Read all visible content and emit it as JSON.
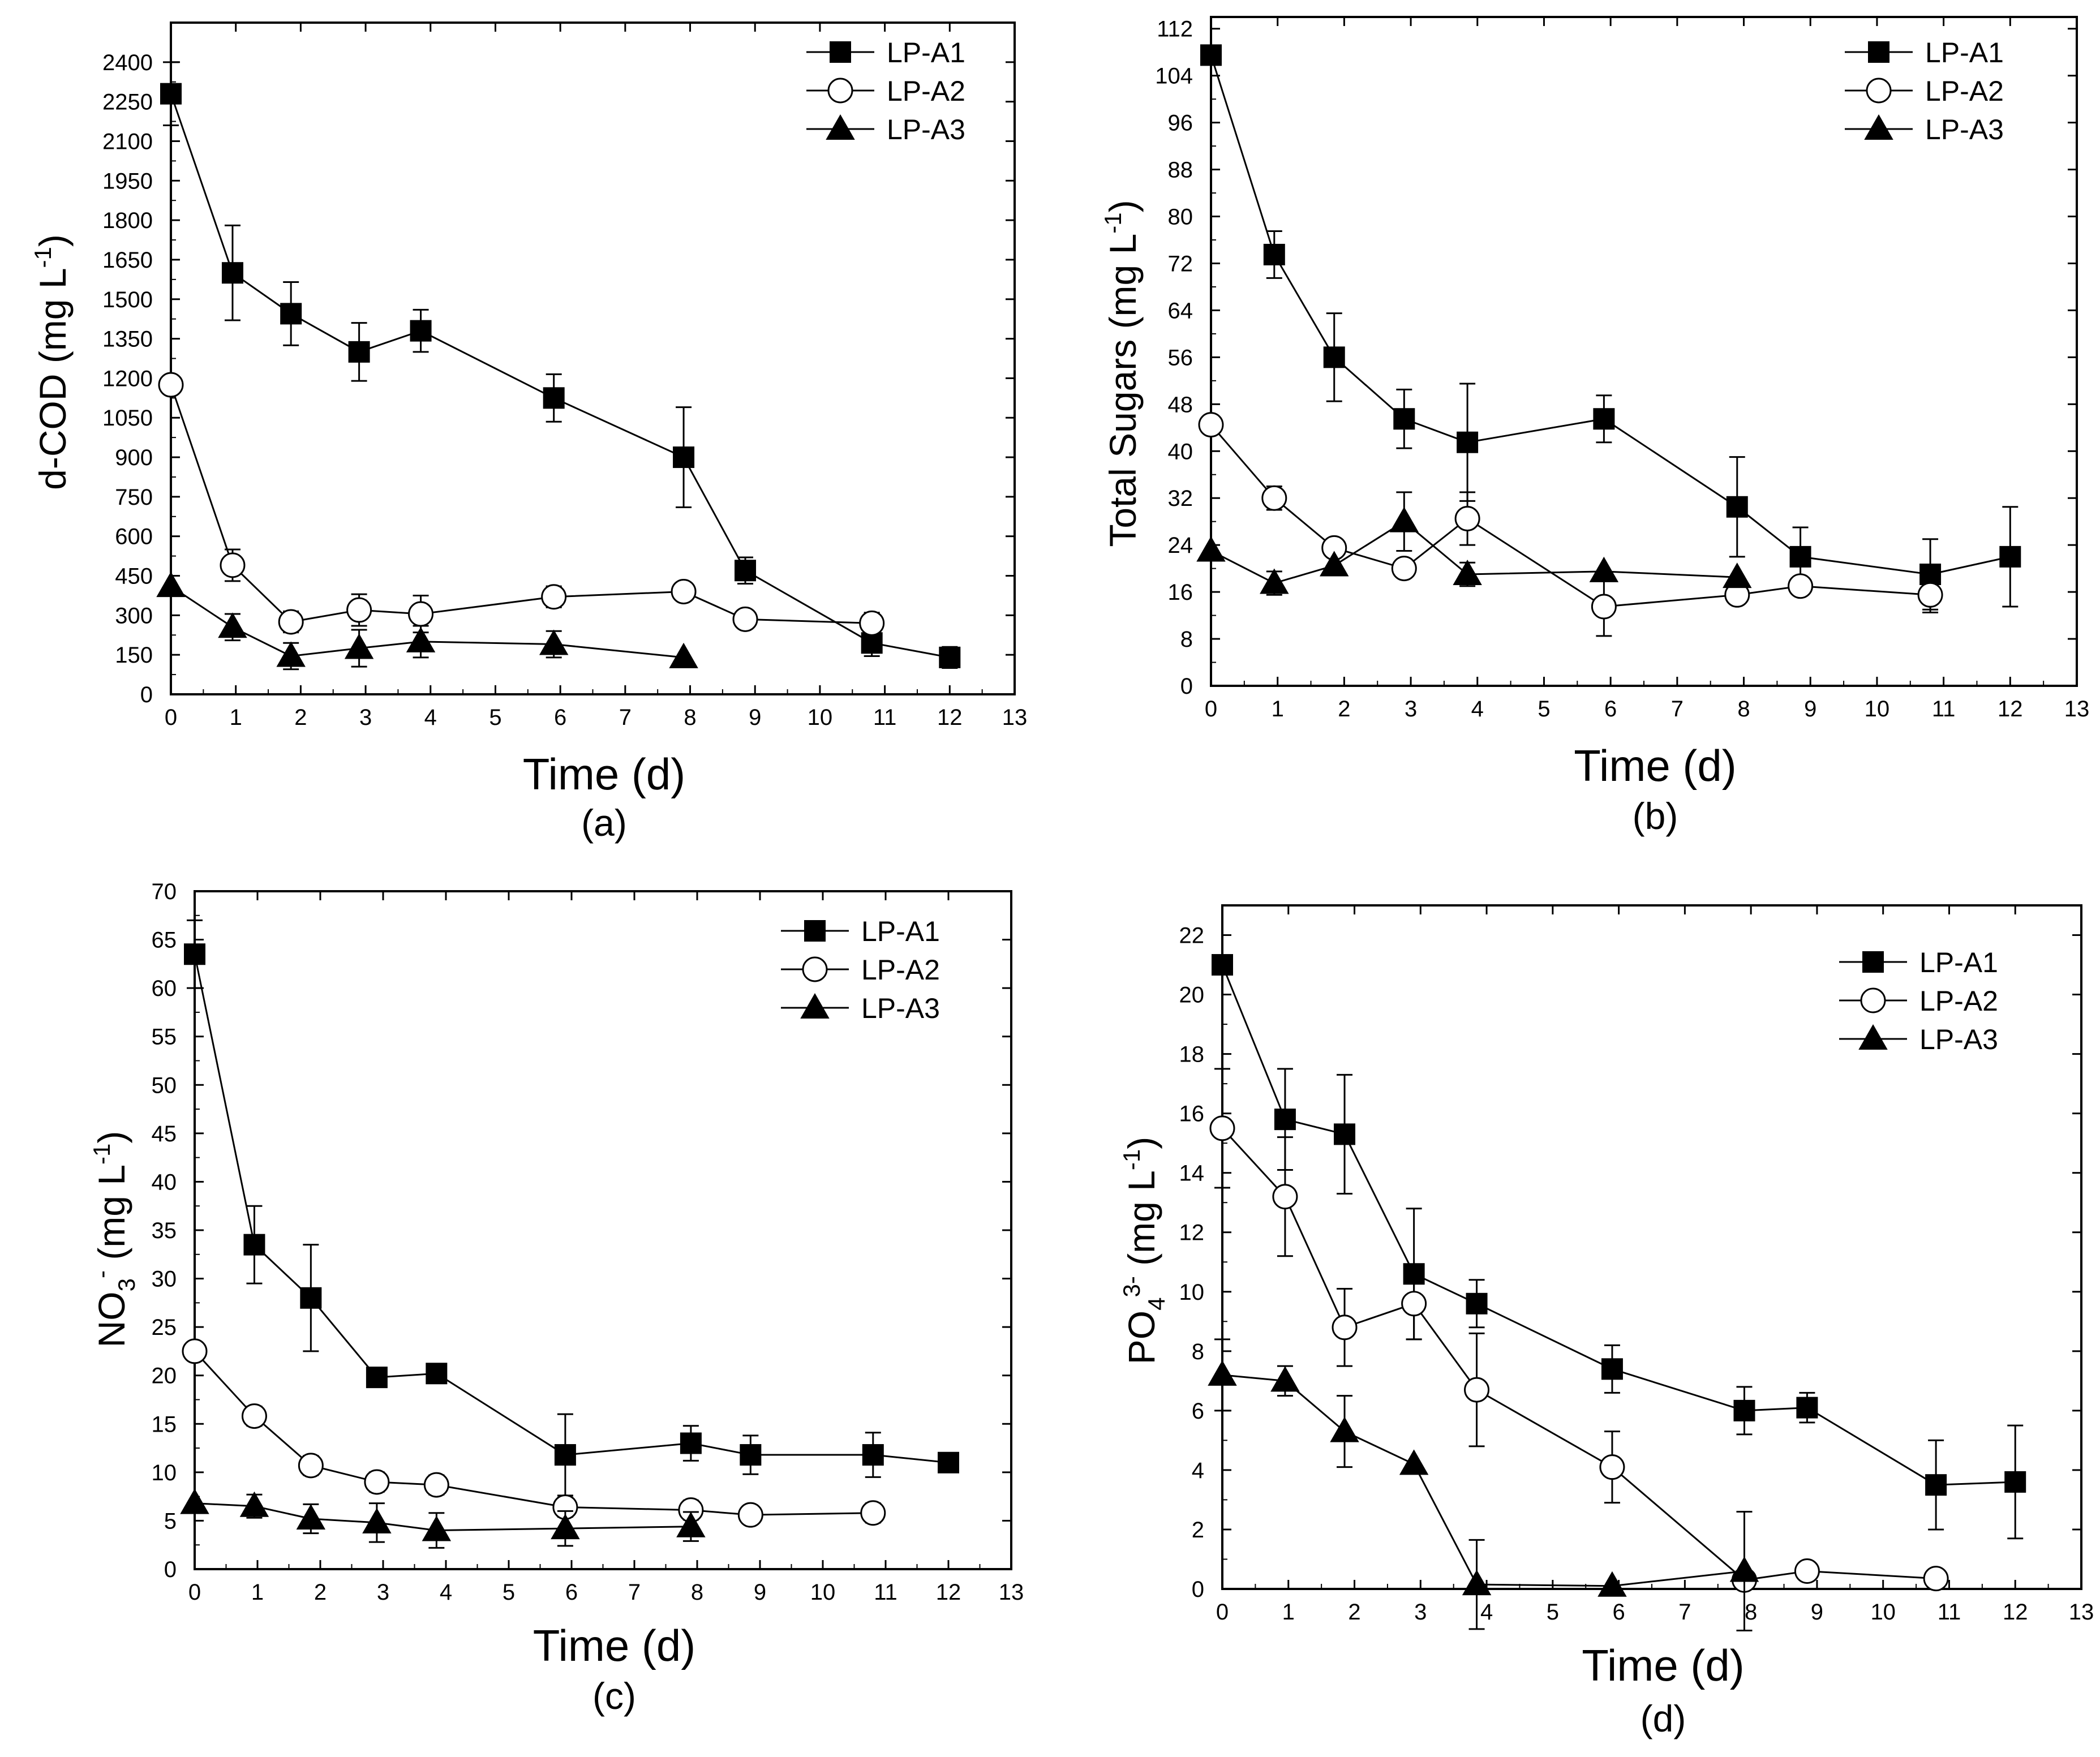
{
  "legend": [
    "LP-A1",
    "LP-A2",
    "LP-A3"
  ],
  "chart_data": [
    {
      "type": "line",
      "panel_label": "(a)",
      "xlabel": "Time (d)",
      "ylabel": "d-COD (mg L⁻¹)",
      "ylabel_parts": [
        "d-COD (mg L",
        "-1",
        ")"
      ],
      "xlim": [
        0,
        13
      ],
      "ylim": [
        0,
        2550
      ],
      "xticks": [
        0,
        1,
        2,
        3,
        4,
        5,
        6,
        7,
        8,
        9,
        10,
        11,
        12,
        13
      ],
      "yticks": [
        0,
        150,
        300,
        450,
        600,
        750,
        900,
        1050,
        1200,
        1350,
        1500,
        1650,
        1800,
        1950,
        2100,
        2250,
        2400
      ],
      "legend_position": "top-right",
      "series": [
        {
          "name": "LP-A1",
          "marker": "square",
          "x": [
            0,
            0.95,
            1.85,
            2.9,
            3.85,
            5.9,
            7.9,
            8.85,
            10.8,
            12
          ],
          "y": [
            2280,
            1600,
            1445,
            1300,
            1380,
            1125,
            900,
            470,
            195,
            140
          ],
          "err": [
            120,
            180,
            120,
            110,
            80,
            90,
            190,
            50,
            50,
            40
          ]
        },
        {
          "name": "LP-A2",
          "marker": "circle",
          "x": [
            0,
            0.95,
            1.85,
            2.9,
            3.85,
            5.9,
            7.9,
            8.85,
            10.8
          ],
          "y": [
            1175,
            490,
            275,
            320,
            305,
            370,
            390,
            285,
            270
          ],
          "err": [
            0,
            60,
            40,
            60,
            70,
            40,
            20,
            0,
            40
          ]
        },
        {
          "name": "LP-A3",
          "marker": "triangle",
          "x": [
            0,
            0.95,
            1.85,
            2.9,
            3.85,
            5.9,
            7.9
          ],
          "y": [
            410,
            255,
            145,
            175,
            200,
            190,
            140
          ],
          "err": [
            0,
            50,
            50,
            70,
            60,
            50,
            0
          ]
        }
      ]
    },
    {
      "type": "line",
      "panel_label": "(b)",
      "xlabel": "Time (d)",
      "ylabel": "Total Sugars  (mg L⁻¹)",
      "ylabel_parts": [
        "Total Sugars  (mg L",
        "-1",
        ")"
      ],
      "xlim": [
        0,
        13
      ],
      "ylim": [
        0,
        114
      ],
      "xticks": [
        0,
        1,
        2,
        3,
        4,
        5,
        6,
        7,
        8,
        9,
        10,
        11,
        12,
        13
      ],
      "yticks": [
        0,
        8,
        16,
        24,
        32,
        40,
        48,
        56,
        64,
        72,
        80,
        88,
        96,
        104,
        112
      ],
      "legend_position": "top-right",
      "series": [
        {
          "name": "LP-A1",
          "marker": "square",
          "x": [
            0,
            0.95,
            1.85,
            2.9,
            3.85,
            5.9,
            7.9,
            8.85,
            10.8,
            12
          ],
          "y": [
            107.5,
            73.5,
            56,
            45.5,
            41.5,
            45.5,
            30.5,
            22,
            19,
            22
          ],
          "err": [
            0,
            4,
            7.5,
            5,
            10,
            4,
            8.5,
            5,
            6,
            8.5
          ]
        },
        {
          "name": "LP-A2",
          "marker": "circle",
          "x": [
            0,
            0.95,
            1.85,
            2.9,
            3.85,
            5.9,
            7.9,
            8.85,
            10.8
          ],
          "y": [
            44.5,
            32,
            23.5,
            20,
            28.5,
            13.5,
            15.5,
            17,
            15.5
          ],
          "err": [
            0,
            2,
            0,
            0,
            4.5,
            5,
            0,
            1.5,
            3
          ]
        },
        {
          "name": "LP-A3",
          "marker": "triangle",
          "x": [
            0,
            0.95,
            1.85,
            2.9,
            3.85,
            5.9,
            7.9
          ],
          "y": [
            23,
            17.5,
            20.5,
            28,
            19,
            19.5,
            18.5
          ],
          "err": [
            0,
            2,
            0,
            5,
            2,
            0,
            0
          ]
        }
      ]
    },
    {
      "type": "line",
      "panel_label": "(c)",
      "xlabel": "Time (d)",
      "ylabel": "NO₃⁻  (mg L⁻¹)",
      "ylabel_parts": [
        "NO",
        "3",
        "-",
        "  (mg L",
        "-1",
        ")"
      ],
      "xlim": [
        0,
        13
      ],
      "ylim": [
        0,
        70
      ],
      "xticks": [
        0,
        1,
        2,
        3,
        4,
        5,
        6,
        7,
        8,
        9,
        10,
        11,
        12,
        13
      ],
      "yticks": [
        0,
        5,
        10,
        15,
        20,
        25,
        30,
        35,
        40,
        45,
        50,
        55,
        60,
        65,
        70
      ],
      "legend_position": "top-right",
      "series": [
        {
          "name": "LP-A1",
          "marker": "square",
          "x": [
            0,
            0.95,
            1.85,
            2.9,
            3.85,
            5.9,
            7.9,
            8.85,
            10.8,
            12
          ],
          "y": [
            63.5,
            33.5,
            28,
            19.8,
            20.2,
            11.8,
            13,
            11.8,
            11.8,
            11
          ],
          "err": [
            3.5,
            4,
            5.5,
            0,
            0,
            4.2,
            1.8,
            2,
            2.3,
            0
          ]
        },
        {
          "name": "LP-A2",
          "marker": "circle",
          "x": [
            0,
            0.95,
            1.85,
            2.9,
            3.85,
            5.9,
            7.9,
            8.85,
            10.8
          ],
          "y": [
            22.5,
            15.8,
            10.7,
            9,
            8.7,
            6.4,
            6.1,
            5.6,
            5.8
          ],
          "err": [
            0,
            1,
            1,
            1,
            1,
            1,
            1,
            0.5,
            1
          ]
        },
        {
          "name": "LP-A3",
          "marker": "triangle",
          "x": [
            0,
            0.95,
            1.85,
            2.9,
            3.85,
            5.9,
            7.9
          ],
          "y": [
            6.8,
            6.5,
            5.2,
            4.8,
            4,
            4.2,
            4.4
          ],
          "err": [
            0,
            1.2,
            1.5,
            2,
            1.8,
            1.8,
            1.5
          ]
        }
      ]
    },
    {
      "type": "line",
      "panel_label": "(d)",
      "xlabel": "Time (d)",
      "ylabel": "PO₄³⁻ (mg L⁻¹)",
      "ylabel_parts": [
        "PO",
        "4",
        "3-",
        " (mg L",
        "-1",
        ")"
      ],
      "xlim": [
        0,
        13
      ],
      "ylim": [
        0,
        23
      ],
      "xticks": [
        0,
        1,
        2,
        3,
        4,
        5,
        6,
        7,
        8,
        9,
        10,
        11,
        12,
        13
      ],
      "yticks": [
        0,
        2,
        4,
        6,
        8,
        10,
        12,
        14,
        16,
        18,
        20,
        22
      ],
      "legend_position": "top-right",
      "series": [
        {
          "name": "LP-A1",
          "marker": "square",
          "x": [
            0,
            0.95,
            1.85,
            2.9,
            3.85,
            5.9,
            7.9,
            8.85,
            10.8,
            12
          ],
          "y": [
            21,
            15.8,
            15.3,
            10.6,
            9.6,
            7.4,
            6,
            6.1,
            3.5,
            3.6
          ],
          "err": [
            0,
            1.7,
            2,
            2.2,
            0.8,
            0.8,
            0.8,
            0.5,
            1.5,
            1.9
          ]
        },
        {
          "name": "LP-A2",
          "marker": "circle",
          "x": [
            0,
            0.95,
            1.85,
            2.9,
            3.85,
            5.9,
            7.9,
            8.85,
            10.8
          ],
          "y": [
            15.5,
            13.2,
            8.8,
            9.6,
            6.7,
            4.1,
            0.3,
            0.6,
            0.35
          ],
          "err": [
            2,
            2,
            1.3,
            1.2,
            1.9,
            1.2,
            0,
            0,
            0
          ]
        },
        {
          "name": "LP-A3",
          "marker": "triangle",
          "x": [
            0,
            0.95,
            1.85,
            2.9,
            3.85,
            5.9,
            7.9
          ],
          "y": [
            7.2,
            7,
            5.3,
            4.2,
            0.15,
            0.1,
            0.6
          ],
          "err": [
            1.2,
            0.5,
            1.2,
            0,
            1.5,
            0,
            2
          ]
        }
      ]
    }
  ]
}
